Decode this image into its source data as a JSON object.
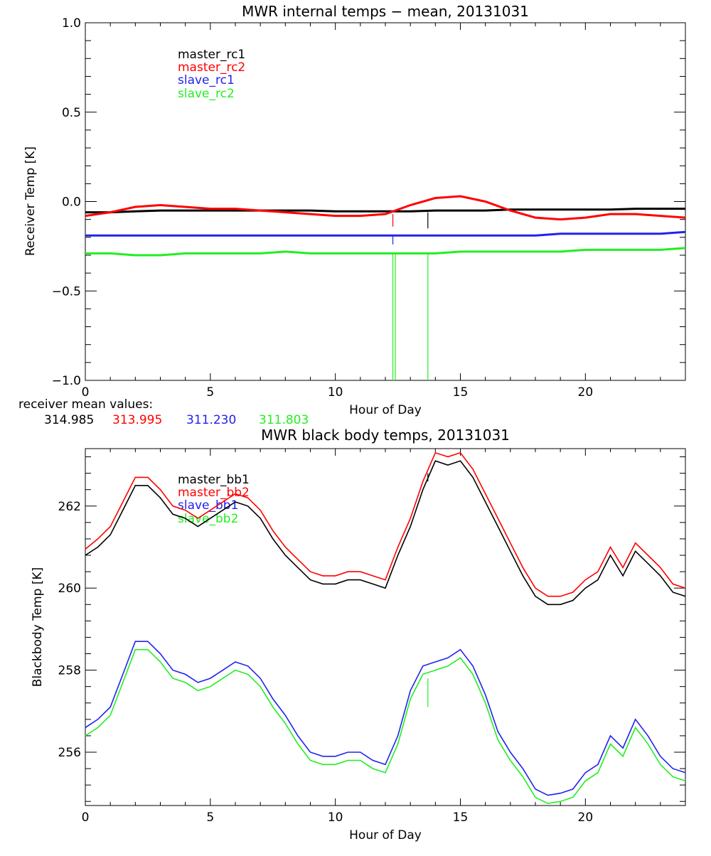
{
  "colors": {
    "black": "#000000",
    "red": "#ff0000",
    "blue": "#2222ee",
    "green": "#22ee22"
  },
  "mean_values": {
    "label": "receiver mean values:",
    "values": [
      "314.985",
      "313.995",
      "311.230",
      "311.803"
    ]
  },
  "chart_data": [
    {
      "type": "line",
      "title": "MWR internal temps − mean, 20131031",
      "xlabel": "Hour of Day",
      "ylabel": "Receiver Temp [K]",
      "xlim": [
        0,
        24
      ],
      "ylim": [
        -1.0,
        1.0
      ],
      "xticks": [
        0,
        5,
        10,
        15,
        20
      ],
      "xtick_labels": [
        "0",
        "5",
        "10",
        "15",
        "20"
      ],
      "yticks": [
        -1.0,
        -0.5,
        0.0,
        0.5,
        1.0
      ],
      "ytick_labels": [
        "−1.0",
        "−0.5",
        "0.0",
        "0.5",
        "1.0"
      ],
      "legend": [
        "master_rc1",
        "master_rc2",
        "slave_rc1",
        "slave_rc2"
      ],
      "x": [
        0,
        1,
        2,
        3,
        4,
        5,
        6,
        7,
        8,
        9,
        10,
        11,
        12,
        13,
        14,
        15,
        16,
        17,
        18,
        19,
        20,
        21,
        22,
        23,
        24
      ],
      "series": [
        {
          "name": "master_rc1",
          "color": "black",
          "values": [
            -0.06,
            -0.06,
            -0.055,
            -0.05,
            -0.05,
            -0.05,
            -0.05,
            -0.05,
            -0.05,
            -0.05,
            -0.055,
            -0.055,
            -0.055,
            -0.055,
            -0.05,
            -0.05,
            -0.05,
            -0.045,
            -0.045,
            -0.045,
            -0.045,
            -0.045,
            -0.04,
            -0.04,
            -0.04
          ]
        },
        {
          "name": "master_rc2",
          "color": "red",
          "values": [
            -0.08,
            -0.06,
            -0.03,
            -0.02,
            -0.03,
            -0.04,
            -0.04,
            -0.05,
            -0.06,
            -0.07,
            -0.08,
            -0.08,
            -0.07,
            -0.02,
            0.02,
            0.03,
            0.0,
            -0.05,
            -0.09,
            -0.1,
            -0.09,
            -0.07,
            -0.07,
            -0.08,
            -0.09
          ]
        },
        {
          "name": "slave_rc1",
          "color": "blue",
          "values": [
            -0.19,
            -0.19,
            -0.19,
            -0.19,
            -0.19,
            -0.19,
            -0.19,
            -0.19,
            -0.19,
            -0.19,
            -0.19,
            -0.19,
            -0.19,
            -0.19,
            -0.19,
            -0.19,
            -0.19,
            -0.19,
            -0.19,
            -0.18,
            -0.18,
            -0.18,
            -0.18,
            -0.18,
            -0.17
          ]
        },
        {
          "name": "slave_rc2",
          "color": "green",
          "values": [
            -0.29,
            -0.29,
            -0.3,
            -0.3,
            -0.29,
            -0.29,
            -0.29,
            -0.29,
            -0.28,
            -0.29,
            -0.29,
            -0.29,
            -0.29,
            -0.29,
            -0.29,
            -0.28,
            -0.28,
            -0.28,
            -0.28,
            -0.28,
            -0.27,
            -0.27,
            -0.27,
            -0.27,
            -0.26
          ]
        }
      ],
      "spikes": [
        {
          "color": "green",
          "x": 12.3,
          "y_from": -0.29,
          "y_to": -1.0
        },
        {
          "color": "green",
          "x": 12.4,
          "y_from": -0.29,
          "y_to": -1.0
        },
        {
          "color": "green",
          "x": 13.7,
          "y_from": -0.29,
          "y_to": -1.0
        },
        {
          "color": "red",
          "x": 12.3,
          "y_from": -0.07,
          "y_to": -0.14
        },
        {
          "color": "black",
          "x": 13.7,
          "y_from": -0.06,
          "y_to": -0.15
        },
        {
          "color": "blue",
          "x": 12.3,
          "y_from": -0.19,
          "y_to": -0.24
        }
      ]
    },
    {
      "type": "line",
      "title": "MWR black body temps, 20131031",
      "xlabel": "Hour of Day",
      "ylabel": "Blackbody Temp [K]",
      "xlim": [
        0,
        24
      ],
      "ylim": [
        254.7,
        263.4
      ],
      "xticks": [
        0,
        5,
        10,
        15,
        20
      ],
      "xtick_labels": [
        "0",
        "5",
        "10",
        "15",
        "20"
      ],
      "yticks": [
        256,
        258,
        260,
        262
      ],
      "ytick_labels": [
        "256",
        "258",
        "260",
        "262"
      ],
      "legend": [
        "master_bb1",
        "master_bb2",
        "slave_bb1",
        "slave_bb2"
      ],
      "x": [
        0,
        0.5,
        1,
        1.5,
        2,
        2.5,
        3,
        3.5,
        4,
        4.5,
        5,
        5.5,
        6,
        6.5,
        7,
        7.5,
        8,
        8.5,
        9,
        9.5,
        10,
        10.5,
        11,
        11.5,
        12,
        12.5,
        13,
        13.5,
        14,
        14.5,
        15,
        15.5,
        16,
        16.5,
        17,
        17.5,
        18,
        18.5,
        19,
        19.5,
        20,
        20.5,
        21,
        21.5,
        22,
        22.5,
        23,
        23.5,
        24
      ],
      "series": [
        {
          "name": "master_bb1",
          "color": "black",
          "values": [
            260.8,
            261.0,
            261.3,
            261.9,
            262.5,
            262.5,
            262.2,
            261.8,
            261.7,
            261.5,
            261.7,
            261.9,
            262.1,
            262.0,
            261.7,
            261.2,
            260.8,
            260.5,
            260.2,
            260.1,
            260.1,
            260.2,
            260.2,
            260.1,
            260.0,
            260.8,
            261.5,
            262.4,
            263.1,
            263.0,
            263.1,
            262.7,
            262.1,
            261.5,
            260.9,
            260.3,
            259.8,
            259.6,
            259.6,
            259.7,
            260.0,
            260.2,
            260.8,
            260.3,
            260.9,
            260.6,
            260.3,
            259.9,
            259.8
          ]
        },
        {
          "name": "master_bb2",
          "color": "red",
          "values": [
            260.95,
            261.2,
            261.5,
            262.1,
            262.7,
            262.7,
            262.4,
            262.0,
            261.9,
            261.7,
            261.9,
            262.1,
            262.3,
            262.2,
            261.9,
            261.4,
            261.0,
            260.7,
            260.4,
            260.3,
            260.3,
            260.4,
            260.4,
            260.3,
            260.2,
            261.0,
            261.7,
            262.6,
            263.3,
            263.2,
            263.3,
            262.9,
            262.3,
            261.7,
            261.1,
            260.5,
            260.0,
            259.8,
            259.8,
            259.9,
            260.2,
            260.4,
            261.0,
            260.5,
            261.1,
            260.8,
            260.5,
            260.1,
            260.0
          ]
        },
        {
          "name": "slave_bb1",
          "color": "blue",
          "values": [
            256.6,
            256.8,
            257.1,
            257.9,
            258.7,
            258.7,
            258.4,
            258.0,
            257.9,
            257.7,
            257.8,
            258.0,
            258.2,
            258.1,
            257.8,
            257.3,
            256.9,
            256.4,
            256.0,
            255.9,
            255.9,
            256.0,
            256.0,
            255.8,
            255.7,
            256.4,
            257.5,
            258.1,
            258.2,
            258.3,
            258.5,
            258.1,
            257.4,
            256.5,
            256.0,
            255.6,
            255.1,
            254.95,
            255.0,
            255.1,
            255.5,
            255.7,
            256.4,
            256.1,
            256.8,
            256.4,
            255.9,
            255.6,
            255.5
          ]
        },
        {
          "name": "slave_bb2",
          "color": "green",
          "values": [
            256.4,
            256.6,
            256.9,
            257.7,
            258.5,
            258.5,
            258.2,
            257.8,
            257.7,
            257.5,
            257.6,
            257.8,
            258.0,
            257.9,
            257.6,
            257.1,
            256.7,
            256.2,
            255.8,
            255.7,
            255.7,
            255.8,
            255.8,
            255.6,
            255.5,
            256.2,
            257.3,
            257.9,
            258.0,
            258.1,
            258.3,
            257.9,
            257.2,
            256.3,
            255.8,
            255.4,
            254.9,
            254.75,
            254.8,
            254.9,
            255.3,
            255.5,
            256.2,
            255.9,
            256.6,
            256.2,
            255.7,
            255.4,
            255.3
          ]
        }
      ],
      "spikes": [
        {
          "color": "green",
          "x": 13.7,
          "y_from": 257.8,
          "y_to": 257.1
        },
        {
          "color": "black",
          "x": 13.7,
          "y_from": 262.8,
          "y_to": 262.6
        }
      ]
    }
  ]
}
